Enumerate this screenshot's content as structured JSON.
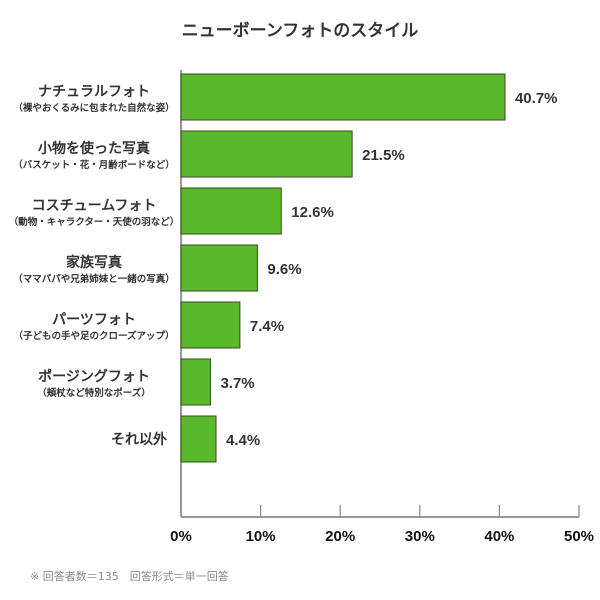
{
  "chart_data": {
    "type": "bar",
    "orientation": "horizontal",
    "title": "ニューボーンフォトのスタイル",
    "categories": [
      {
        "label": "ナチュラルフォト",
        "sublabel": "（裸やおくるみに包まれた自然な姿）"
      },
      {
        "label": "小物を使った写真",
        "sublabel": "（バスケット・花・月齢ボードなど）"
      },
      {
        "label": "コスチュームフォト",
        "sublabel": "（動物・キャラクター・天使の羽など）"
      },
      {
        "label": "家族写真",
        "sublabel": "（ママパパや兄弟姉妹と一緒の写真）"
      },
      {
        "label": "パーツフォト",
        "sublabel": "（子どもの手や足のクローズアップ）"
      },
      {
        "label": "ポージングフォト",
        "sublabel": "（頬杖など特別なポーズ）"
      },
      {
        "label": "それ以外",
        "sublabel": ""
      }
    ],
    "values": [
      40.7,
      21.5,
      12.6,
      9.6,
      7.4,
      3.7,
      4.4
    ],
    "value_labels": [
      "40.7%",
      "21.5%",
      "12.6%",
      "9.6%",
      "7.4%",
      "3.7%",
      "4.4%"
    ],
    "xlim": [
      0,
      50
    ],
    "xticks": [
      "0%",
      "10%",
      "20%",
      "30%",
      "40%",
      "50%"
    ],
    "grid": false,
    "bar_color": "#5ab92b",
    "bar_border": "#3a4a2a"
  },
  "note": "※ 回答者数＝135　回答形式＝単一回答"
}
